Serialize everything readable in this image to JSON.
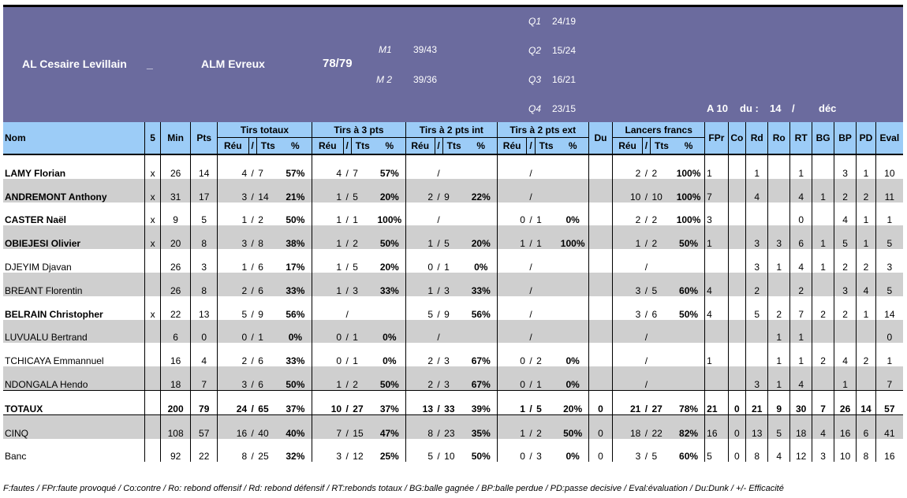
{
  "match": {
    "home": "AL Cesaire Levillain",
    "sep": "_",
    "away": "ALM Evreux",
    "score": "78/79",
    "m1_label": "M1",
    "m1_value": "39/43",
    "m2_label": "M 2",
    "m2_value": "39/36",
    "q1_label": "Q1",
    "q1_value": "24/19",
    "q2_label": "Q2",
    "q2_value": "15/24",
    "q3_label": "Q3",
    "q3_value": "16/21",
    "q4_label": "Q4",
    "q4_value": "23/15",
    "date_a": "A 10",
    "date_du": "du :",
    "date_day": "14",
    "date_slash": "/",
    "date_month": "déc"
  },
  "headers": {
    "nom": "Nom",
    "five": "5",
    "min": "Min",
    "pts": "Pts",
    "tirs_totaux": "Tirs totaux",
    "tirs_3": "Tirs à 3 pts",
    "tirs_2int": "Tirs à 2 pts int",
    "tirs_2ext": "Tirs à 2 pts ext",
    "du": "Du",
    "lf": "Lancers francs",
    "fpr": "FPr",
    "co": "Co",
    "rd": "Rd",
    "ro": "Ro",
    "rt": "RT",
    "bg": "BG",
    "bp": "BP",
    "pd": "PD",
    "eval": "Eval",
    "reu": "Réu",
    "slash": "/",
    "tts": "Tts",
    "pct": "%"
  },
  "rows": [
    {
      "name": "LAMY Florian",
      "bold": true,
      "grey": false,
      "five": "x",
      "min": "26",
      "pts": "14",
      "tt_r": "4",
      "tt_s": "/",
      "tt_t": "7",
      "tt_p": "57%",
      "t3_r": "4",
      "t3_s": "/",
      "t3_t": "7",
      "t3_p": "57%",
      "ti_r": "",
      "ti_s": "/",
      "ti_t": "",
      "ti_p": "",
      "te_r": "",
      "te_s": "/",
      "te_t": "",
      "te_p": "",
      "du": "",
      "lf_r": "2",
      "lf_s": "/",
      "lf_t": "2",
      "lf_p": "100%",
      "fpr": "1",
      "co": "",
      "rd": "1",
      "ro": "",
      "rt": "1",
      "bg": "",
      "bp": "3",
      "pd": "1",
      "eval": "10"
    },
    {
      "name": "ANDREMONT Anthony",
      "bold": true,
      "grey": true,
      "five": "x",
      "min": "31",
      "pts": "17",
      "tt_r": "3",
      "tt_s": "/",
      "tt_t": "14",
      "tt_p": "21%",
      "t3_r": "1",
      "t3_s": "/",
      "t3_t": "5",
      "t3_p": "20%",
      "ti_r": "2",
      "ti_s": "/",
      "ti_t": "9",
      "ti_p": "22%",
      "te_r": "",
      "te_s": "/",
      "te_t": "",
      "te_p": "",
      "du": "",
      "lf_r": "10",
      "lf_s": "/",
      "lf_t": "10",
      "lf_p": "100%",
      "fpr": "7",
      "co": "",
      "rd": "4",
      "ro": "",
      "rt": "4",
      "bg": "1",
      "bp": "2",
      "pd": "2",
      "eval": "11"
    },
    {
      "name": "CASTER Naël",
      "bold": true,
      "grey": false,
      "five": "x",
      "min": "9",
      "pts": "5",
      "tt_r": "1",
      "tt_s": "/",
      "tt_t": "2",
      "tt_p": "50%",
      "t3_r": "1",
      "t3_s": "/",
      "t3_t": "1",
      "t3_p": "100%",
      "ti_r": "",
      "ti_s": "/",
      "ti_t": "",
      "ti_p": "",
      "te_r": "0",
      "te_s": "/",
      "te_t": "1",
      "te_p": "0%",
      "du": "",
      "lf_r": "2",
      "lf_s": "/",
      "lf_t": "2",
      "lf_p": "100%",
      "fpr": "3",
      "co": "",
      "rd": "",
      "ro": "",
      "rt": "0",
      "bg": "",
      "bp": "4",
      "pd": "1",
      "eval": "1"
    },
    {
      "name": "OBIEJESI Olivier",
      "bold": true,
      "grey": true,
      "five": "x",
      "min": "20",
      "pts": "8",
      "tt_r": "3",
      "tt_s": "/",
      "tt_t": "8",
      "tt_p": "38%",
      "t3_r": "1",
      "t3_s": "/",
      "t3_t": "2",
      "t3_p": "50%",
      "ti_r": "1",
      "ti_s": "/",
      "ti_t": "5",
      "ti_p": "20%",
      "te_r": "1",
      "te_s": "/",
      "te_t": "1",
      "te_p": "100%",
      "du": "",
      "lf_r": "1",
      "lf_s": "/",
      "lf_t": "2",
      "lf_p": "50%",
      "fpr": "1",
      "co": "",
      "rd": "3",
      "ro": "3",
      "rt": "6",
      "bg": "1",
      "bp": "5",
      "pd": "1",
      "eval": "5"
    },
    {
      "name": "DJEYIM Djavan",
      "bold": false,
      "grey": false,
      "five": "",
      "min": "26",
      "pts": "3",
      "tt_r": "1",
      "tt_s": "/",
      "tt_t": "6",
      "tt_p": "17%",
      "t3_r": "1",
      "t3_s": "/",
      "t3_t": "5",
      "t3_p": "20%",
      "ti_r": "0",
      "ti_s": "/",
      "ti_t": "1",
      "ti_p": "0%",
      "te_r": "",
      "te_s": "/",
      "te_t": "",
      "te_p": "",
      "du": "",
      "lf_r": "",
      "lf_s": "/",
      "lf_t": "",
      "lf_p": "",
      "fpr": "",
      "co": "",
      "rd": "3",
      "ro": "1",
      "rt": "4",
      "bg": "1",
      "bp": "2",
      "pd": "2",
      "eval": "3"
    },
    {
      "name": "BREANT Florentin",
      "bold": false,
      "grey": true,
      "five": "",
      "min": "26",
      "pts": "8",
      "tt_r": "2",
      "tt_s": "/",
      "tt_t": "6",
      "tt_p": "33%",
      "t3_r": "1",
      "t3_s": "/",
      "t3_t": "3",
      "t3_p": "33%",
      "ti_r": "1",
      "ti_s": "/",
      "ti_t": "3",
      "ti_p": "33%",
      "te_r": "",
      "te_s": "/",
      "te_t": "",
      "te_p": "",
      "du": "",
      "lf_r": "3",
      "lf_s": "/",
      "lf_t": "5",
      "lf_p": "60%",
      "fpr": "4",
      "co": "",
      "rd": "2",
      "ro": "",
      "rt": "2",
      "bg": "",
      "bp": "3",
      "pd": "4",
      "eval": "5"
    },
    {
      "name": "BELRAIN Christopher",
      "bold": true,
      "grey": false,
      "five": "x",
      "min": "22",
      "pts": "13",
      "tt_r": "5",
      "tt_s": "/",
      "tt_t": "9",
      "tt_p": "56%",
      "t3_r": "",
      "t3_s": "/",
      "t3_t": "",
      "t3_p": "",
      "ti_r": "5",
      "ti_s": "/",
      "ti_t": "9",
      "ti_p": "56%",
      "te_r": "",
      "te_s": "/",
      "te_t": "",
      "te_p": "",
      "du": "",
      "lf_r": "3",
      "lf_s": "/",
      "lf_t": "6",
      "lf_p": "50%",
      "fpr": "4",
      "co": "",
      "rd": "5",
      "ro": "2",
      "rt": "7",
      "bg": "2",
      "bp": "2",
      "pd": "1",
      "eval": "14"
    },
    {
      "name": "LUVUALU Bertrand",
      "bold": false,
      "grey": true,
      "five": "",
      "min": "6",
      "pts": "0",
      "tt_r": "0",
      "tt_s": "/",
      "tt_t": "1",
      "tt_p": "0%",
      "t3_r": "0",
      "t3_s": "/",
      "t3_t": "1",
      "t3_p": "0%",
      "ti_r": "",
      "ti_s": "/",
      "ti_t": "",
      "ti_p": "",
      "te_r": "",
      "te_s": "/",
      "te_t": "",
      "te_p": "",
      "du": "",
      "lf_r": "",
      "lf_s": "/",
      "lf_t": "",
      "lf_p": "",
      "fpr": "",
      "co": "",
      "rd": "",
      "ro": "1",
      "rt": "1",
      "bg": "",
      "bp": "",
      "pd": "",
      "eval": "0"
    },
    {
      "name": "TCHICAYA Emmannuel",
      "bold": false,
      "grey": false,
      "five": "",
      "min": "16",
      "pts": "4",
      "tt_r": "2",
      "tt_s": "/",
      "tt_t": "6",
      "tt_p": "33%",
      "t3_r": "0",
      "t3_s": "/",
      "t3_t": "1",
      "t3_p": "0%",
      "ti_r": "2",
      "ti_s": "/",
      "ti_t": "3",
      "ti_p": "67%",
      "te_r": "0",
      "te_s": "/",
      "te_t": "2",
      "te_p": "0%",
      "du": "",
      "lf_r": "",
      "lf_s": "/",
      "lf_t": "",
      "lf_p": "",
      "fpr": "1",
      "co": "",
      "rd": "",
      "ro": "1",
      "rt": "1",
      "bg": "2",
      "bp": "4",
      "pd": "2",
      "eval": "1"
    },
    {
      "name": "NDONGALA Hendo",
      "bold": false,
      "grey": true,
      "five": "",
      "min": "18",
      "pts": "7",
      "tt_r": "3",
      "tt_s": "/",
      "tt_t": "6",
      "tt_p": "50%",
      "t3_r": "1",
      "t3_s": "/",
      "t3_t": "2",
      "t3_p": "50%",
      "ti_r": "2",
      "ti_s": "/",
      "ti_t": "3",
      "ti_p": "67%",
      "te_r": "0",
      "te_s": "/",
      "te_t": "1",
      "te_p": "0%",
      "du": "",
      "lf_r": "",
      "lf_s": "/",
      "lf_t": "",
      "lf_p": "",
      "fpr": "",
      "co": "",
      "rd": "3",
      "ro": "1",
      "rt": "4",
      "bg": "",
      "bp": "1",
      "pd": "",
      "eval": "7"
    }
  ],
  "summary": [
    {
      "name": "TOTAUX",
      "cls": "tot",
      "five": "",
      "min": "200",
      "pts": "79",
      "tt_r": "24",
      "tt_s": "/",
      "tt_t": "65",
      "tt_p": "37%",
      "t3_r": "10",
      "t3_s": "/",
      "t3_t": "27",
      "t3_p": "37%",
      "ti_r": "13",
      "ti_s": "/",
      "ti_t": "33",
      "ti_p": "39%",
      "te_r": "1",
      "te_s": "/",
      "te_t": "5",
      "te_p": "20%",
      "du": "0",
      "lf_r": "21",
      "lf_s": "/",
      "lf_t": "27",
      "lf_p": "78%",
      "fpr": "21",
      "co": "0",
      "rd": "21",
      "ro": "9",
      "rt": "30",
      "bg": "7",
      "bp": "26",
      "pd": "14",
      "eval": "57"
    },
    {
      "name": "CINQ",
      "cls": "cinq grey",
      "five": "",
      "min": "108",
      "pts": "57",
      "tt_r": "16",
      "tt_s": "/",
      "tt_t": "40",
      "tt_p": "40%",
      "t3_r": "7",
      "t3_s": "/",
      "t3_t": "15",
      "t3_p": "47%",
      "ti_r": "8",
      "ti_s": "/",
      "ti_t": "23",
      "ti_p": "35%",
      "te_r": "1",
      "te_s": "/",
      "te_t": "2",
      "te_p": "50%",
      "du": "0",
      "lf_r": "18",
      "lf_s": "/",
      "lf_t": "22",
      "lf_p": "82%",
      "fpr": "16",
      "co": "0",
      "rd": "13",
      "ro": "5",
      "rt": "18",
      "bg": "4",
      "bp": "16",
      "pd": "6",
      "eval": "41"
    },
    {
      "name": "Banc",
      "cls": "banc",
      "five": "",
      "min": "92",
      "pts": "22",
      "tt_r": "8",
      "tt_s": "/",
      "tt_t": "25",
      "tt_p": "32%",
      "t3_r": "3",
      "t3_s": "/",
      "t3_t": "12",
      "t3_p": "25%",
      "ti_r": "5",
      "ti_s": "/",
      "ti_t": "10",
      "ti_p": "50%",
      "te_r": "0",
      "te_s": "/",
      "te_t": "3",
      "te_p": "0%",
      "du": "0",
      "lf_r": "3",
      "lf_s": "/",
      "lf_t": "5",
      "lf_p": "60%",
      "fpr": "5",
      "co": "0",
      "rd": "8",
      "ro": "4",
      "rt": "12",
      "bg": "3",
      "bp": "10",
      "pd": "8",
      "eval": "16"
    }
  ],
  "footer": "F:fautes / FPr:faute provoqué / Co:contre / Ro: rebond offensif / Rd: rebond défensif /  RT:rebonds totaux / BG:balle gagnée / BP:balle perdue / PD:passe decisive / Eval:évaluation / Du:Dunk / +/- Efficacité"
}
